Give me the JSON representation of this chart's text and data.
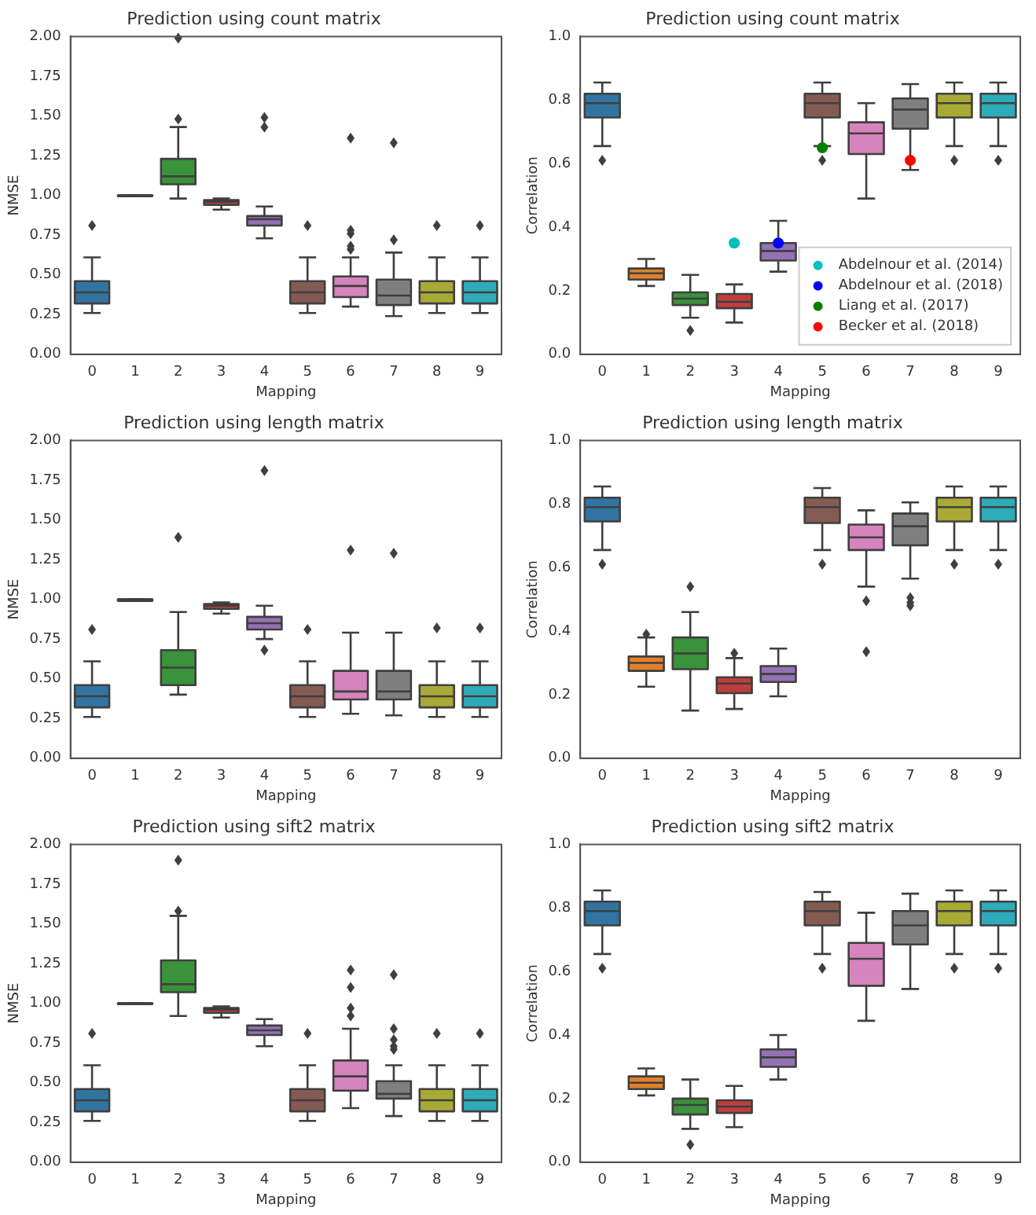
{
  "chart_data": [
    {
      "type": "box",
      "title": "Prediction using count matrix",
      "xlabel": "Mapping",
      "ylabel": "NMSE",
      "categories": [
        "0",
        "1",
        "2",
        "3",
        "4",
        "5",
        "6",
        "7",
        "8",
        "9"
      ],
      "colors": [
        "#3274a1",
        "#e1812c",
        "#3a923a",
        "#c03d3e",
        "#9372b2",
        "#845b53",
        "#d684bd",
        "#7f7f7f",
        "#a9aa35",
        "#2eabb8"
      ],
      "boxes": [
        {
          "low": 0.26,
          "q1": 0.32,
          "median": 0.39,
          "q3": 0.46,
          "high": 0.61,
          "outliers": [
            0.81
          ]
        },
        {
          "low": 1.0,
          "q1": 1.0,
          "median": 1.0,
          "q3": 1.0,
          "high": 1.0
        },
        {
          "low": 0.98,
          "q1": 1.07,
          "median": 1.12,
          "q3": 1.23,
          "high": 1.43,
          "outliers": [
            1.48,
            1.99
          ]
        },
        {
          "low": 0.91,
          "q1": 0.94,
          "median": 0.96,
          "q3": 0.97,
          "high": 0.98
        },
        {
          "low": 0.73,
          "q1": 0.81,
          "median": 0.85,
          "q3": 0.87,
          "high": 0.93,
          "outliers": [
            1.43,
            1.49
          ]
        },
        {
          "low": 0.26,
          "q1": 0.32,
          "median": 0.39,
          "q3": 0.46,
          "high": 0.61,
          "outliers": [
            0.81
          ]
        },
        {
          "low": 0.3,
          "q1": 0.36,
          "median": 0.43,
          "q3": 0.49,
          "high": 0.61,
          "outliers": [
            0.66,
            0.68,
            0.76,
            0.78,
            1.36
          ]
        },
        {
          "low": 0.24,
          "q1": 0.31,
          "median": 0.37,
          "q3": 0.47,
          "high": 0.64,
          "outliers": [
            0.72,
            1.33
          ]
        },
        {
          "low": 0.26,
          "q1": 0.32,
          "median": 0.39,
          "q3": 0.46,
          "high": 0.61,
          "outliers": [
            0.81
          ]
        },
        {
          "low": 0.26,
          "q1": 0.32,
          "median": 0.39,
          "q3": 0.46,
          "high": 0.61,
          "outliers": [
            0.81
          ]
        }
      ],
      "ylim": [
        0,
        2
      ],
      "yticks": [
        {
          "value": 0,
          "label": "0.00"
        },
        {
          "value": 0.25,
          "label": "0.25"
        },
        {
          "value": 0.5,
          "label": "0.50"
        },
        {
          "value": 0.75,
          "label": "0.75"
        },
        {
          "value": 1,
          "label": "1.00"
        },
        {
          "value": 1.25,
          "label": "1.25"
        },
        {
          "value": 1.5,
          "label": "1.50"
        },
        {
          "value": 1.75,
          "label": "1.75"
        },
        {
          "value": 2,
          "label": "2.00"
        }
      ]
    },
    {
      "type": "box",
      "title": "Prediction using count matrix",
      "xlabel": "Mapping",
      "ylabel": "Correlation",
      "categories": [
        "0",
        "1",
        "2",
        "3",
        "4",
        "5",
        "6",
        "7",
        "8",
        "9"
      ],
      "colors": [
        "#3274a1",
        "#e1812c",
        "#3a923a",
        "#c03d3e",
        "#9372b2",
        "#845b53",
        "#d684bd",
        "#7f7f7f",
        "#a9aa35",
        "#2eabb8"
      ],
      "boxes": [
        {
          "low": 0.655,
          "q1": 0.745,
          "median": 0.79,
          "q3": 0.82,
          "high": 0.855,
          "outliers": [
            0.61
          ]
        },
        {
          "low": 0.215,
          "q1": 0.235,
          "median": 0.255,
          "q3": 0.27,
          "high": 0.3
        },
        {
          "low": 0.115,
          "q1": 0.155,
          "median": 0.175,
          "q3": 0.195,
          "high": 0.25,
          "outliers": [
            0.075
          ]
        },
        {
          "low": 0.1,
          "q1": 0.145,
          "median": 0.165,
          "q3": 0.19,
          "high": 0.22
        },
        {
          "low": 0.26,
          "q1": 0.295,
          "median": 0.325,
          "q3": 0.35,
          "high": 0.42
        },
        {
          "low": 0.655,
          "q1": 0.745,
          "median": 0.79,
          "q3": 0.82,
          "high": 0.855,
          "outliers": [
            0.61
          ]
        },
        {
          "low": 0.49,
          "q1": 0.63,
          "median": 0.695,
          "q3": 0.73,
          "high": 0.79
        },
        {
          "low": 0.58,
          "q1": 0.71,
          "median": 0.77,
          "q3": 0.805,
          "high": 0.85
        },
        {
          "low": 0.655,
          "q1": 0.745,
          "median": 0.79,
          "q3": 0.82,
          "high": 0.855,
          "outliers": [
            0.61
          ]
        },
        {
          "low": 0.655,
          "q1": 0.745,
          "median": 0.79,
          "q3": 0.82,
          "high": 0.855,
          "outliers": [
            0.61
          ]
        }
      ],
      "series": [
        {
          "type": "scatter",
          "name": "Abdelnour et al. (2014)",
          "color": "#00bfbf",
          "x": [
            "3"
          ],
          "values": [
            0.35
          ]
        },
        {
          "type": "scatter",
          "name": "Abdelnour et al. (2018)",
          "color": "#0000ff",
          "x": [
            "4"
          ],
          "values": [
            0.35
          ]
        },
        {
          "type": "scatter",
          "name": "Liang et al. (2017)",
          "color": "#008000",
          "x": [
            "5"
          ],
          "values": [
            0.65
          ]
        },
        {
          "type": "scatter",
          "name": "Becker et al. (2018)",
          "color": "#ff0000",
          "x": [
            "7"
          ],
          "values": [
            0.61
          ]
        }
      ],
      "legend": "bottom right",
      "marker": "circle",
      "ylim": [
        0,
        1
      ],
      "yticks": [
        {
          "value": 0,
          "label": "0.0"
        },
        {
          "value": 0.2,
          "label": "0.2"
        },
        {
          "value": 0.4,
          "label": "0.4"
        },
        {
          "value": 0.6,
          "label": "0.6"
        },
        {
          "value": 0.8,
          "label": "0.8"
        },
        {
          "value": 1,
          "label": "1.0"
        }
      ]
    },
    {
      "type": "box",
      "title": "Prediction using length matrix",
      "xlabel": "Mapping",
      "ylabel": "NMSE",
      "categories": [
        "0",
        "1",
        "2",
        "3",
        "4",
        "5",
        "6",
        "7",
        "8",
        "9"
      ],
      "colors": [
        "#3274a1",
        "#e1812c",
        "#3a923a",
        "#c03d3e",
        "#9372b2",
        "#845b53",
        "#d684bd",
        "#7f7f7f",
        "#a9aa35",
        "#2eabb8"
      ],
      "boxes": [
        {
          "low": 0.26,
          "q1": 0.32,
          "median": 0.39,
          "q3": 0.46,
          "high": 0.61,
          "outliers": [
            0.81
          ]
        },
        {
          "low": 0.99,
          "q1": 0.99,
          "median": 1.0,
          "q3": 1.0,
          "high": 1.0
        },
        {
          "low": 0.4,
          "q1": 0.46,
          "median": 0.57,
          "q3": 0.68,
          "high": 0.92,
          "outliers": [
            1.39
          ]
        },
        {
          "low": 0.91,
          "q1": 0.94,
          "median": 0.96,
          "q3": 0.97,
          "high": 0.98
        },
        {
          "low": 0.75,
          "q1": 0.81,
          "median": 0.85,
          "q3": 0.89,
          "high": 0.96,
          "outliers": [
            0.68,
            1.81
          ]
        },
        {
          "low": 0.26,
          "q1": 0.32,
          "median": 0.39,
          "q3": 0.46,
          "high": 0.61,
          "outliers": [
            0.81
          ]
        },
        {
          "low": 0.28,
          "q1": 0.37,
          "median": 0.42,
          "q3": 0.55,
          "high": 0.79,
          "outliers": [
            1.31
          ]
        },
        {
          "low": 0.27,
          "q1": 0.37,
          "median": 0.42,
          "q3": 0.55,
          "high": 0.79,
          "outliers": [
            1.29
          ]
        },
        {
          "low": 0.26,
          "q1": 0.32,
          "median": 0.39,
          "q3": 0.46,
          "high": 0.61,
          "outliers": [
            0.82
          ]
        },
        {
          "low": 0.26,
          "q1": 0.32,
          "median": 0.39,
          "q3": 0.46,
          "high": 0.61,
          "outliers": [
            0.82
          ]
        }
      ],
      "ylim": [
        0,
        2
      ],
      "yticks": [
        {
          "value": 0,
          "label": "0.00"
        },
        {
          "value": 0.25,
          "label": "0.25"
        },
        {
          "value": 0.5,
          "label": "0.50"
        },
        {
          "value": 0.75,
          "label": "0.75"
        },
        {
          "value": 1,
          "label": "1.00"
        },
        {
          "value": 1.25,
          "label": "1.25"
        },
        {
          "value": 1.5,
          "label": "1.50"
        },
        {
          "value": 1.75,
          "label": "1.75"
        },
        {
          "value": 2,
          "label": "2.00"
        }
      ]
    },
    {
      "type": "box",
      "title": "Prediction using length matrix",
      "xlabel": "Mapping",
      "ylabel": "Correlation",
      "categories": [
        "0",
        "1",
        "2",
        "3",
        "4",
        "5",
        "6",
        "7",
        "8",
        "9"
      ],
      "colors": [
        "#3274a1",
        "#e1812c",
        "#3a923a",
        "#c03d3e",
        "#9372b2",
        "#845b53",
        "#d684bd",
        "#7f7f7f",
        "#a9aa35",
        "#2eabb8"
      ],
      "boxes": [
        {
          "low": 0.655,
          "q1": 0.745,
          "median": 0.79,
          "q3": 0.82,
          "high": 0.855,
          "outliers": [
            0.61
          ]
        },
        {
          "low": 0.225,
          "q1": 0.275,
          "median": 0.3,
          "q3": 0.32,
          "high": 0.38,
          "outliers": [
            0.39
          ]
        },
        {
          "low": 0.15,
          "q1": 0.28,
          "median": 0.33,
          "q3": 0.38,
          "high": 0.46,
          "outliers": [
            0.54
          ]
        },
        {
          "low": 0.155,
          "q1": 0.205,
          "median": 0.235,
          "q3": 0.255,
          "high": 0.315,
          "outliers": [
            0.33
          ]
        },
        {
          "low": 0.195,
          "q1": 0.24,
          "median": 0.265,
          "q3": 0.29,
          "high": 0.345
        },
        {
          "low": 0.655,
          "q1": 0.74,
          "median": 0.79,
          "q3": 0.82,
          "high": 0.85,
          "outliers": [
            0.61
          ]
        },
        {
          "low": 0.54,
          "q1": 0.655,
          "median": 0.695,
          "q3": 0.735,
          "high": 0.78,
          "outliers": [
            0.335,
            0.495
          ]
        },
        {
          "low": 0.565,
          "q1": 0.67,
          "median": 0.73,
          "q3": 0.77,
          "high": 0.805,
          "outliers": [
            0.48,
            0.49,
            0.505
          ]
        },
        {
          "low": 0.655,
          "q1": 0.745,
          "median": 0.79,
          "q3": 0.82,
          "high": 0.855,
          "outliers": [
            0.61
          ]
        },
        {
          "low": 0.655,
          "q1": 0.745,
          "median": 0.79,
          "q3": 0.82,
          "high": 0.855,
          "outliers": [
            0.61
          ]
        }
      ],
      "ylim": [
        0,
        1
      ],
      "yticks": [
        {
          "value": 0,
          "label": "0.0"
        },
        {
          "value": 0.2,
          "label": "0.2"
        },
        {
          "value": 0.4,
          "label": "0.4"
        },
        {
          "value": 0.6,
          "label": "0.6"
        },
        {
          "value": 0.8,
          "label": "0.8"
        },
        {
          "value": 1,
          "label": "1.0"
        }
      ]
    },
    {
      "type": "box",
      "title": "Prediction using sift2 matrix",
      "xlabel": "Mapping",
      "ylabel": "NMSE",
      "categories": [
        "0",
        "1",
        "2",
        "3",
        "4",
        "5",
        "6",
        "7",
        "8",
        "9"
      ],
      "colors": [
        "#3274a1",
        "#e1812c",
        "#3a923a",
        "#c03d3e",
        "#9372b2",
        "#845b53",
        "#d684bd",
        "#7f7f7f",
        "#a9aa35",
        "#2eabb8"
      ],
      "boxes": [
        {
          "low": 0.26,
          "q1": 0.32,
          "median": 0.39,
          "q3": 0.46,
          "high": 0.61,
          "outliers": [
            0.81
          ]
        },
        {
          "low": 1.0,
          "q1": 1.0,
          "median": 1.0,
          "q3": 1.0,
          "high": 1.0
        },
        {
          "low": 0.92,
          "q1": 1.07,
          "median": 1.12,
          "q3": 1.27,
          "high": 1.55,
          "outliers": [
            1.58,
            1.9
          ]
        },
        {
          "low": 0.91,
          "q1": 0.94,
          "median": 0.96,
          "q3": 0.97,
          "high": 0.98
        },
        {
          "low": 0.73,
          "q1": 0.8,
          "median": 0.83,
          "q3": 0.86,
          "high": 0.9
        },
        {
          "low": 0.26,
          "q1": 0.32,
          "median": 0.39,
          "q3": 0.46,
          "high": 0.61,
          "outliers": [
            0.81
          ]
        },
        {
          "low": 0.34,
          "q1": 0.45,
          "median": 0.54,
          "q3": 0.64,
          "high": 0.84,
          "outliers": [
            0.92,
            0.97,
            1.1,
            1.21
          ]
        },
        {
          "low": 0.29,
          "q1": 0.4,
          "median": 0.43,
          "q3": 0.51,
          "high": 0.61,
          "outliers": [
            0.71,
            0.73,
            0.77,
            0.84,
            1.18
          ]
        },
        {
          "low": 0.26,
          "q1": 0.32,
          "median": 0.39,
          "q3": 0.46,
          "high": 0.61,
          "outliers": [
            0.81
          ]
        },
        {
          "low": 0.26,
          "q1": 0.32,
          "median": 0.39,
          "q3": 0.46,
          "high": 0.61,
          "outliers": [
            0.81
          ]
        }
      ],
      "ylim": [
        0,
        2
      ],
      "yticks": [
        {
          "value": 0,
          "label": "0.00"
        },
        {
          "value": 0.25,
          "label": "0.25"
        },
        {
          "value": 0.5,
          "label": "0.50"
        },
        {
          "value": 0.75,
          "label": "0.75"
        },
        {
          "value": 1,
          "label": "1.00"
        },
        {
          "value": 1.25,
          "label": "1.25"
        },
        {
          "value": 1.5,
          "label": "1.50"
        },
        {
          "value": 1.75,
          "label": "1.75"
        },
        {
          "value": 2,
          "label": "2.00"
        }
      ]
    },
    {
      "type": "box",
      "title": "Prediction using sift2 matrix",
      "xlabel": "Mapping",
      "ylabel": "Correlation",
      "categories": [
        "0",
        "1",
        "2",
        "3",
        "4",
        "5",
        "6",
        "7",
        "8",
        "9"
      ],
      "colors": [
        "#3274a1",
        "#e1812c",
        "#3a923a",
        "#c03d3e",
        "#9372b2",
        "#845b53",
        "#d684bd",
        "#7f7f7f",
        "#a9aa35",
        "#2eabb8"
      ],
      "boxes": [
        {
          "low": 0.655,
          "q1": 0.745,
          "median": 0.79,
          "q3": 0.82,
          "high": 0.855,
          "outliers": [
            0.61
          ]
        },
        {
          "low": 0.21,
          "q1": 0.23,
          "median": 0.25,
          "q3": 0.27,
          "high": 0.295
        },
        {
          "low": 0.105,
          "q1": 0.15,
          "median": 0.18,
          "q3": 0.2,
          "high": 0.26,
          "outliers": [
            0.055
          ]
        },
        {
          "low": 0.11,
          "q1": 0.155,
          "median": 0.175,
          "q3": 0.195,
          "high": 0.24
        },
        {
          "low": 0.26,
          "q1": 0.3,
          "median": 0.33,
          "q3": 0.355,
          "high": 0.4
        },
        {
          "low": 0.655,
          "q1": 0.745,
          "median": 0.79,
          "q3": 0.82,
          "high": 0.85,
          "outliers": [
            0.61
          ]
        },
        {
          "low": 0.445,
          "q1": 0.555,
          "median": 0.64,
          "q3": 0.69,
          "high": 0.785
        },
        {
          "low": 0.545,
          "q1": 0.685,
          "median": 0.745,
          "q3": 0.79,
          "high": 0.845
        },
        {
          "low": 0.655,
          "q1": 0.745,
          "median": 0.79,
          "q3": 0.82,
          "high": 0.855,
          "outliers": [
            0.61
          ]
        },
        {
          "low": 0.655,
          "q1": 0.745,
          "median": 0.79,
          "q3": 0.82,
          "high": 0.855,
          "outliers": [
            0.61
          ]
        }
      ],
      "ylim": [
        0,
        1
      ],
      "yticks": [
        {
          "value": 0,
          "label": "0.0"
        },
        {
          "value": 0.2,
          "label": "0.2"
        },
        {
          "value": 0.4,
          "label": "0.4"
        },
        {
          "value": 0.6,
          "label": "0.6"
        },
        {
          "value": 0.8,
          "label": "0.8"
        },
        {
          "value": 1,
          "label": "1.0"
        }
      ]
    }
  ]
}
